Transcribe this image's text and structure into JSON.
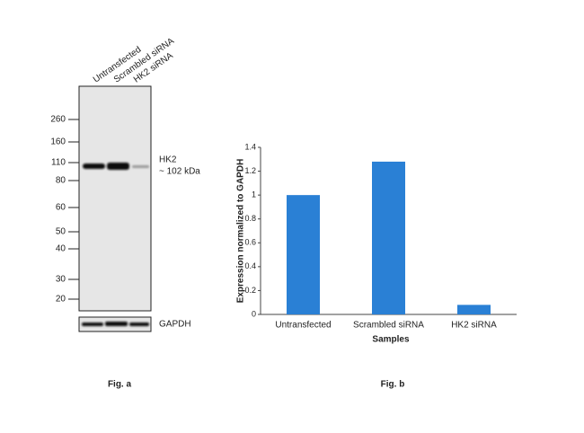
{
  "chart_data": {
    "type": "bar",
    "categories": [
      "Untransfected",
      "Scrambled siRNA",
      "HK2 siRNA"
    ],
    "values": [
      1.0,
      1.28,
      0.08
    ],
    "color": "#2a80d5",
    "ylim": [
      0,
      1.4
    ],
    "yticks": [
      0,
      0.2,
      0.4,
      0.6,
      0.8,
      1,
      1.2,
      1.4
    ],
    "ylabel": "Expression normalized to GAPDH",
    "xlabel": "Samples",
    "caption": "Fig. b"
  },
  "blot": {
    "lanes": [
      "Untransfected",
      "Scrambled siRNA",
      "HK2 siRNA"
    ],
    "markers": [
      260,
      160,
      110,
      80,
      60,
      50,
      40,
      30,
      20
    ],
    "band_label": "HK2",
    "band_size": "~ 102 kDa",
    "loading_control": "GAPDH",
    "caption": "Fig. a"
  }
}
